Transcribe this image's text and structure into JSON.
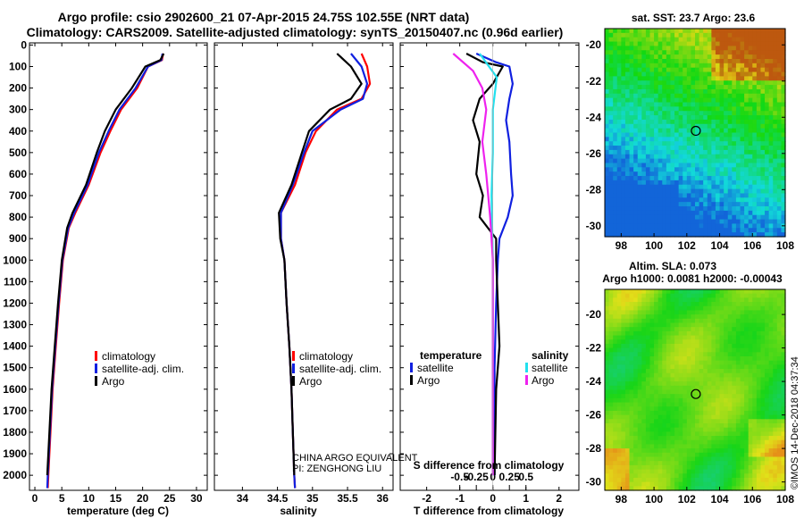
{
  "header": {
    "title": "Argo profile: csio 2902600_21 07-Apr-2015 24.75S 102.55E (NRT data)",
    "subtitle": "Climatology: CARS2009. Satellite-adjusted climatology: synTS_20150407.nc (0.96d earlier)"
  },
  "colors": {
    "climatology": "#ff0000",
    "satellite": "#1020e0",
    "argo": "#000000",
    "sal_satellite": "#22e0ee",
    "sal_argo": "#ee22ee"
  },
  "depth_ticks": [
    "0",
    "100",
    "200",
    "300",
    "400",
    "500",
    "600",
    "700",
    "800",
    "900",
    "1000",
    "1100",
    "1200",
    "1300",
    "1400",
    "1500",
    "1600",
    "1700",
    "1800",
    "1900",
    "2000"
  ],
  "chart_data": [
    {
      "type": "line",
      "name": "temperature-profile",
      "xlabel": "temperature (deg C)",
      "ylabel": "",
      "xlim": [
        -1,
        32
      ],
      "ylim": [
        2070,
        -10
      ],
      "xticks": [
        "0",
        "5",
        "10",
        "15",
        "20",
        "25",
        "30"
      ],
      "xtick_values": [
        0,
        5,
        10,
        15,
        20,
        25,
        30
      ],
      "legend": [
        "climatology",
        "satellite-adj. clim.",
        "Argo"
      ],
      "series": [
        {
          "name": "climatology",
          "color": "red",
          "points": [
            [
              23.8,
              40
            ],
            [
              23.6,
              70
            ],
            [
              21,
              100
            ],
            [
              19,
              200
            ],
            [
              16,
              300
            ],
            [
              14,
              400
            ],
            [
              12.2,
              500
            ],
            [
              10,
              650
            ],
            [
              7.5,
              780
            ],
            [
              6.3,
              850
            ],
            [
              5.2,
              1000
            ],
            [
              4.5,
              1200
            ],
            [
              3.9,
              1400
            ],
            [
              3.3,
              1600
            ],
            [
              2.9,
              1800
            ],
            [
              2.5,
              2000
            ],
            [
              2.4,
              2060
            ]
          ]
        },
        {
          "name": "satellite-adj. clim.",
          "color": "blue",
          "points": [
            [
              23.7,
              40
            ],
            [
              23.5,
              70
            ],
            [
              21,
              100
            ],
            [
              18.7,
              200
            ],
            [
              15.7,
              300
            ],
            [
              13.7,
              400
            ],
            [
              11.9,
              500
            ],
            [
              9.8,
              650
            ],
            [
              7.3,
              780
            ],
            [
              6.2,
              850
            ],
            [
              5.1,
              1000
            ],
            [
              4.4,
              1200
            ],
            [
              3.8,
              1400
            ],
            [
              3.2,
              1600
            ],
            [
              2.8,
              1800
            ],
            [
              2.4,
              2000
            ],
            [
              2.3,
              2060
            ]
          ]
        },
        {
          "name": "Argo",
          "color": "black",
          "points": [
            [
              23.9,
              40
            ],
            [
              23.3,
              70
            ],
            [
              20.5,
              100
            ],
            [
              18,
              200
            ],
            [
              15,
              300
            ],
            [
              13,
              400
            ],
            [
              11.5,
              500
            ],
            [
              9.5,
              650
            ],
            [
              7,
              780
            ],
            [
              6,
              850
            ],
            [
              5,
              1000
            ],
            [
              4.3,
              1200
            ],
            [
              3.7,
              1400
            ],
            [
              3.1,
              1600
            ],
            [
              2.7,
              1800
            ],
            [
              2.3,
              2000
            ]
          ]
        }
      ]
    },
    {
      "type": "line",
      "name": "salinity-profile",
      "xlabel": "salinity",
      "xlim": [
        33.6,
        36.15
      ],
      "ylim": [
        2070,
        -10
      ],
      "xticks": [
        "34",
        "34.5",
        "35",
        "35.5",
        "36"
      ],
      "xtick_values": [
        34,
        34.5,
        35,
        35.5,
        36
      ],
      "legend": [
        "climatology",
        "satellite-adj. clim.",
        "Argo"
      ],
      "series": [
        {
          "name": "climatology",
          "color": "red",
          "points": [
            [
              35.7,
              40
            ],
            [
              35.78,
              100
            ],
            [
              35.82,
              180
            ],
            [
              35.7,
              250
            ],
            [
              35.35,
              300
            ],
            [
              35.05,
              400
            ],
            [
              34.9,
              500
            ],
            [
              34.75,
              650
            ],
            [
              34.55,
              780
            ],
            [
              34.55,
              900
            ],
            [
              34.6,
              1000
            ],
            [
              34.63,
              1200
            ],
            [
              34.67,
              1400
            ],
            [
              34.7,
              1600
            ],
            [
              34.72,
              1800
            ],
            [
              34.74,
              2000
            ],
            [
              34.75,
              2060
            ]
          ]
        },
        {
          "name": "satellite-adj. clim.",
          "color": "blue",
          "points": [
            [
              35.55,
              40
            ],
            [
              35.7,
              100
            ],
            [
              35.78,
              180
            ],
            [
              35.72,
              250
            ],
            [
              35.4,
              300
            ],
            [
              35.0,
              400
            ],
            [
              34.88,
              500
            ],
            [
              34.72,
              650
            ],
            [
              34.55,
              780
            ],
            [
              34.55,
              900
            ],
            [
              34.6,
              1000
            ],
            [
              34.63,
              1200
            ],
            [
              34.67,
              1400
            ],
            [
              34.7,
              1600
            ],
            [
              34.72,
              1800
            ],
            [
              34.74,
              2000
            ],
            [
              34.75,
              2060
            ]
          ]
        },
        {
          "name": "Argo",
          "color": "black",
          "points": [
            [
              35.35,
              40
            ],
            [
              35.55,
              100
            ],
            [
              35.7,
              180
            ],
            [
              35.55,
              250
            ],
            [
              35.25,
              300
            ],
            [
              34.95,
              400
            ],
            [
              34.85,
              500
            ],
            [
              34.7,
              650
            ],
            [
              34.52,
              780
            ],
            [
              34.54,
              900
            ],
            [
              34.6,
              1000
            ],
            [
              34.63,
              1200
            ],
            [
              34.67,
              1400
            ],
            [
              34.7,
              1600
            ],
            [
              34.72,
              1800
            ],
            [
              34.74,
              2000
            ]
          ]
        }
      ]
    },
    {
      "type": "line",
      "name": "difference-profile",
      "xlabel": "T difference from climatology",
      "xlabel_top": "S difference from climatology",
      "xlim": [
        -2.8,
        2.6
      ],
      "ylim": [
        2070,
        -10
      ],
      "xticks": [
        "-2",
        "-1",
        "0",
        "1",
        "2"
      ],
      "xtick_values": [
        -2,
        -1,
        0,
        1,
        2
      ],
      "top_ticks": [
        "-0.5",
        "-0.25",
        "0",
        "0.25",
        "0.5"
      ],
      "top_tick_values": [
        -0.5,
        -0.25,
        0,
        0.25,
        0.5
      ],
      "legend_titles": [
        "temperature",
        "salinity"
      ],
      "legend": [
        "satellite",
        "Argo",
        "satellite",
        "Argo"
      ],
      "series": [
        {
          "name": "temperature satellite",
          "color": "blue",
          "units": "T",
          "points": [
            [
              -0.5,
              40
            ],
            [
              0.1,
              80
            ],
            [
              0.5,
              100
            ],
            [
              0.6,
              180
            ],
            [
              0.5,
              250
            ],
            [
              0.4,
              350
            ],
            [
              0.5,
              450
            ],
            [
              0.55,
              600
            ],
            [
              0.6,
              700
            ],
            [
              0.45,
              800
            ],
            [
              0.2,
              900
            ],
            [
              0.15,
              1000
            ],
            [
              0.1,
              1200
            ],
            [
              0.05,
              1500
            ],
            [
              0.05,
              2000
            ]
          ]
        },
        {
          "name": "temperature Argo",
          "color": "black",
          "units": "T",
          "points": [
            [
              -0.8,
              40
            ],
            [
              -0.3,
              80
            ],
            [
              0.3,
              100
            ],
            [
              0,
              180
            ],
            [
              -0.4,
              250
            ],
            [
              -0.6,
              350
            ],
            [
              -0.4,
              450
            ],
            [
              -0.5,
              600
            ],
            [
              -0.3,
              700
            ],
            [
              -0.4,
              800
            ],
            [
              0.1,
              900
            ],
            [
              0.1,
              1000
            ],
            [
              0.2,
              1400
            ],
            [
              0.1,
              1600
            ],
            [
              0.05,
              2000
            ]
          ]
        },
        {
          "name": "salinity satellite",
          "color": "cyan",
          "units": "S",
          "points": [
            [
              -0.1,
              40
            ],
            [
              0.03,
              150
            ],
            [
              0.0,
              300
            ],
            [
              0.0,
              500
            ],
            [
              -0.01,
              700
            ],
            [
              0.0,
              1000
            ],
            [
              0.0,
              1500
            ],
            [
              0.0,
              2000
            ]
          ]
        },
        {
          "name": "salinity Argo",
          "color": "magenta",
          "units": "S",
          "points": [
            [
              -0.3,
              40
            ],
            [
              -0.15,
              120
            ],
            [
              -0.08,
              200
            ],
            [
              -0.05,
              300
            ],
            [
              -0.08,
              450
            ],
            [
              -0.05,
              600
            ],
            [
              -0.02,
              800
            ],
            [
              0.0,
              1000
            ],
            [
              0.0,
              2000
            ]
          ]
        }
      ]
    },
    {
      "type": "heatmap",
      "name": "sst-map",
      "title": "sat. SST: 23.7 Argo: 23.6",
      "xlim": [
        97,
        108
      ],
      "ylim": [
        -30.6,
        -19.1
      ],
      "xticks": [
        "98",
        "100",
        "102",
        "104",
        "106",
        "108"
      ],
      "xtick_values": [
        98,
        100,
        102,
        104,
        106,
        108
      ],
      "yticks": [
        "-20",
        "-22",
        "-24",
        "-26",
        "-28",
        "-30"
      ],
      "ytick_values": [
        -20,
        -22,
        -24,
        -26,
        -28,
        -30
      ],
      "marker": [
        102.55,
        -24.75
      ]
    },
    {
      "type": "heatmap",
      "name": "sla-map",
      "title": "Altim. SLA: 0.073",
      "subtitle": "Argo h1000: 0.0081 h2000: -0.00043",
      "xlim": [
        97,
        108
      ],
      "ylim": [
        -30.5,
        -18.5
      ],
      "xticks": [
        "98",
        "100",
        "102",
        "104",
        "106",
        "108"
      ],
      "xtick_values": [
        98,
        100,
        102,
        104,
        106,
        108
      ],
      "yticks": [
        "-20",
        "-22",
        "-24",
        "-26",
        "-28",
        "-30"
      ],
      "ytick_values": [
        -20,
        -22,
        -24,
        -26,
        -28,
        -30
      ],
      "marker": [
        102.55,
        -24.75
      ]
    }
  ],
  "annotations": {
    "pi_line1": "CHINA ARGO EQUIVALENT",
    "pi_line2": "PI: ZENGHONG LIU",
    "credit": "©IMOS 14-Dec-2018 04:37:34"
  }
}
